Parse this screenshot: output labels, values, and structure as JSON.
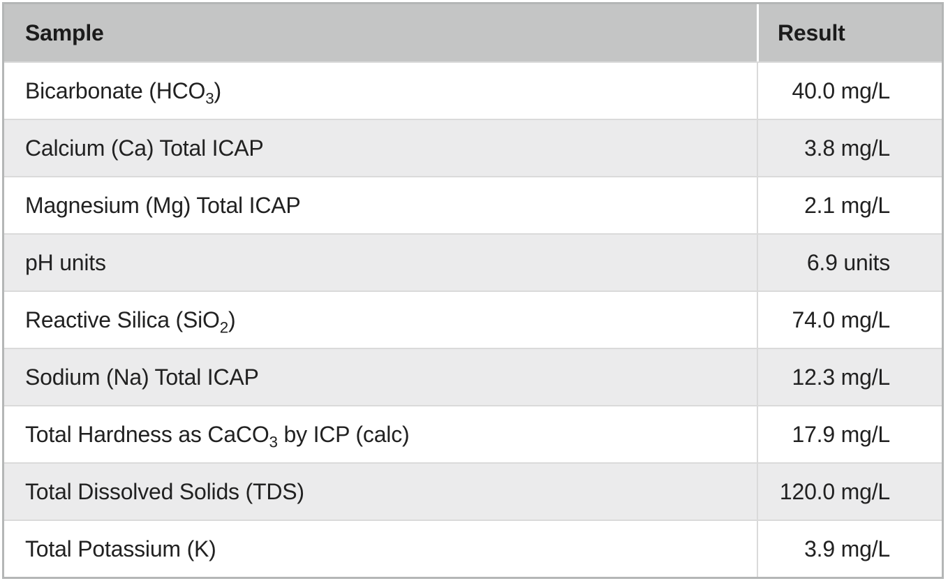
{
  "colors": {
    "header_bg": "#c4c5c5",
    "row_bg": "#ffffff",
    "row_stripe_bg": "#ebebec",
    "grid_line": "#dadada",
    "outer_border": "#b4b6b6",
    "header_divider": "#ffffff",
    "text": "#212121"
  },
  "table": {
    "columns": [
      "Sample",
      "Result"
    ],
    "rows": [
      {
        "sample_text": "Bicarbonate (HCO3)",
        "sample_parts": [
          {
            "t": "Bicarbonate (HCO"
          },
          {
            "sub": "3"
          },
          {
            "t": ")"
          }
        ],
        "result": "40.0 mg/L"
      },
      {
        "sample_text": "Calcium (Ca) Total ICAP",
        "sample_parts": [
          {
            "t": "Calcium (Ca) Total ICAP"
          }
        ],
        "result": "3.8 mg/L"
      },
      {
        "sample_text": "Magnesium (Mg) Total ICAP",
        "sample_parts": [
          {
            "t": "Magnesium (Mg) Total ICAP"
          }
        ],
        "result": "2.1 mg/L"
      },
      {
        "sample_text": "pH units",
        "sample_parts": [
          {
            "t": "pH units"
          }
        ],
        "result": "6.9 units"
      },
      {
        "sample_text": "Reactive Silica (SiO2)",
        "sample_parts": [
          {
            "t": "Reactive Silica (SiO"
          },
          {
            "sub": "2"
          },
          {
            "t": ")"
          }
        ],
        "result": "74.0 mg/L"
      },
      {
        "sample_text": "Sodium (Na) Total ICAP",
        "sample_parts": [
          {
            "t": "Sodium (Na) Total ICAP"
          }
        ],
        "result": "12.3 mg/L"
      },
      {
        "sample_text": "Total Hardness as CaCO3 by ICP (calc)",
        "sample_parts": [
          {
            "t": "Total Hardness as CaCO"
          },
          {
            "sub": "3"
          },
          {
            "t": " by ICP (calc)"
          }
        ],
        "result": "17.9 mg/L"
      },
      {
        "sample_text": "Total Dissolved Solids (TDS)",
        "sample_parts": [
          {
            "t": "Total Dissolved Solids (TDS)"
          }
        ],
        "result": "120.0 mg/L"
      },
      {
        "sample_text": "Total Potassium (K)",
        "sample_parts": [
          {
            "t": "Total Potassium (K)"
          }
        ],
        "result": "3.9 mg/L"
      }
    ]
  },
  "chart_data": {
    "type": "table",
    "title": "",
    "columns": [
      "Sample",
      "Result"
    ],
    "rows": [
      [
        "Bicarbonate (HCO3)",
        "40.0 mg/L"
      ],
      [
        "Calcium (Ca) Total ICAP",
        "3.8 mg/L"
      ],
      [
        "Magnesium (Mg) Total ICAP",
        "2.1 mg/L"
      ],
      [
        "pH units",
        "6.9 units"
      ],
      [
        "Reactive Silica (SiO2)",
        "74.0 mg/L"
      ],
      [
        "Sodium (Na) Total ICAP",
        "12.3 mg/L"
      ],
      [
        "Total Hardness as CaCO3 by ICP (calc)",
        "17.9 mg/L"
      ],
      [
        "Total Dissolved Solids (TDS)",
        "120.0 mg/L"
      ],
      [
        "Total Potassium (K)",
        "3.9 mg/L"
      ]
    ],
    "values": [
      40.0,
      3.8,
      2.1,
      6.9,
      74.0,
      12.3,
      17.9,
      120.0,
      3.9
    ],
    "units": [
      "mg/L",
      "mg/L",
      "mg/L",
      "units",
      "mg/L",
      "mg/L",
      "mg/L",
      "mg/L",
      "mg/L"
    ]
  }
}
